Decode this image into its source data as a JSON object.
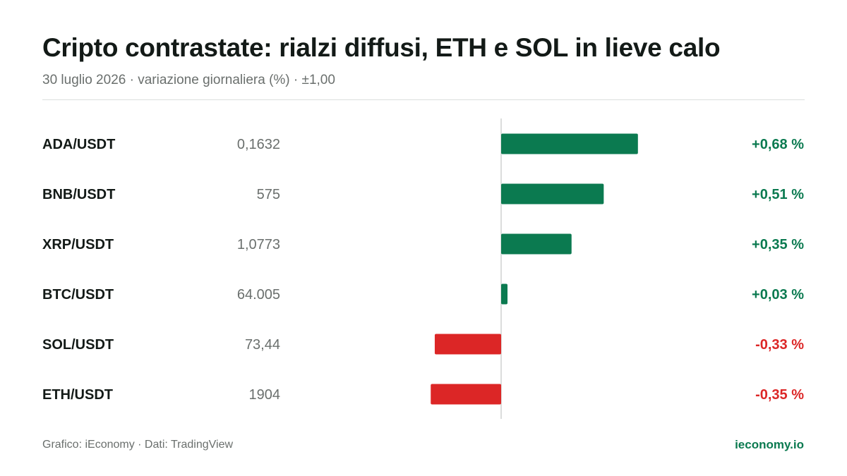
{
  "header": {
    "title": "Cripto contrastate: rialzi diffusi, ETH e SOL in lieve calo",
    "subtitle": "30 luglio 2026 · variazione giornaliera (%) · ±1,00"
  },
  "footer": {
    "credit": "Grafico: iEconomy · Dati: TradingView",
    "brand": "ieconomy.io"
  },
  "colors": {
    "positive": "#0b7a50",
    "negative": "#dc2626",
    "axis": "#cfd2d1"
  },
  "chart_data": {
    "type": "bar",
    "orientation": "horizontal",
    "title": "Cripto contrastate: rialzi diffusi, ETH e SOL in lieve calo",
    "subtitle": "30 luglio 2026 · variazione giornaliera (%) · ±1,00",
    "xlim": [
      -1.0,
      1.0
    ],
    "grid": false,
    "categories": [
      "ADA/USDT",
      "BNB/USDT",
      "XRP/USDT",
      "BTC/USDT",
      "SOL/USDT",
      "ETH/USDT"
    ],
    "prices": [
      "0,1632",
      "575",
      "1,0773",
      "64.005",
      "73,44",
      "1904"
    ],
    "values": [
      0.68,
      0.51,
      0.35,
      0.03,
      -0.33,
      -0.35
    ],
    "value_labels": [
      "+0,68 %",
      "+0,51 %",
      "+0,35 %",
      "+0,03 %",
      "-0,33 %",
      "-0,35 %"
    ]
  }
}
